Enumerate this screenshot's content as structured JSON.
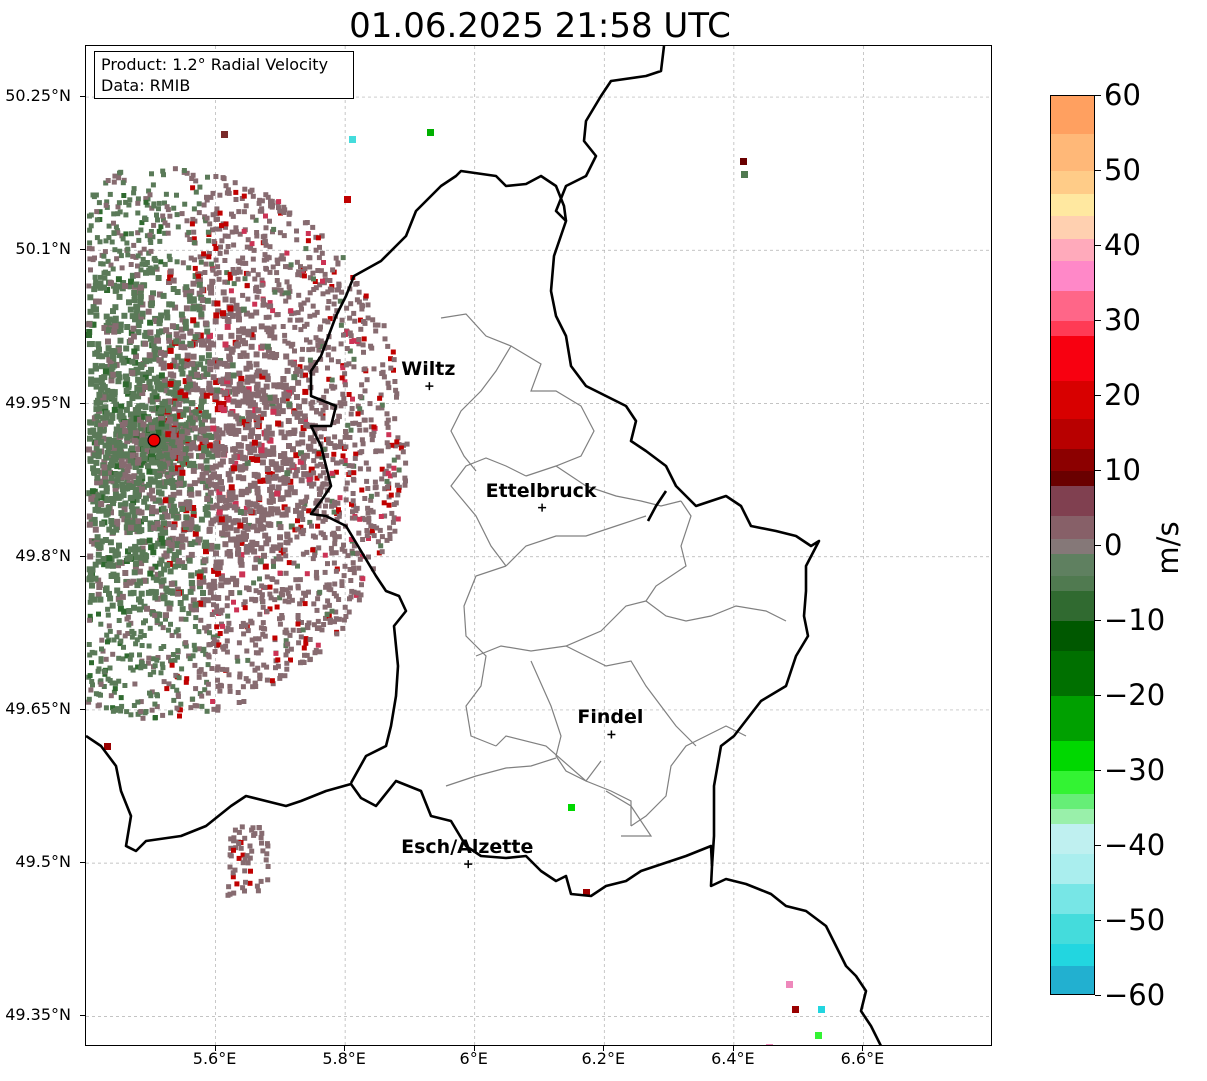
{
  "title": "01.06.2025 21:58 UTC",
  "info": {
    "product": "Product: 1.2° Radial Velocity",
    "data": "Data: RMIB"
  },
  "axes": {
    "lon_range": [
      5.4,
      6.8
    ],
    "lat_range": [
      49.32,
      50.3
    ],
    "x_ticks": [
      {
        "value": 5.6,
        "label": "5.6°E"
      },
      {
        "value": 5.8,
        "label": "5.8°E"
      },
      {
        "value": 6.0,
        "label": "6°E"
      },
      {
        "value": 6.2,
        "label": "6.2°E"
      },
      {
        "value": 6.4,
        "label": "6.4°E"
      },
      {
        "value": 6.6,
        "label": "6.6°E"
      }
    ],
    "y_ticks": [
      {
        "value": 50.25,
        "label": "50.25°N"
      },
      {
        "value": 50.1,
        "label": "50.1°N"
      },
      {
        "value": 49.95,
        "label": "49.95°N"
      },
      {
        "value": 49.8,
        "label": "49.8°N"
      },
      {
        "value": 49.65,
        "label": "49.65°N"
      },
      {
        "value": 49.5,
        "label": "49.5°N"
      },
      {
        "value": 49.35,
        "label": "49.35°N"
      }
    ],
    "grid": true
  },
  "radar_site": {
    "lon": 5.505,
    "lat": 49.914,
    "color": "#ee0000"
  },
  "cities": [
    {
      "name": "Wiltz",
      "lon": 5.93,
      "lat": 49.967
    },
    {
      "name": "Ettelbruck",
      "lon": 6.104,
      "lat": 49.848
    },
    {
      "name": "Findel",
      "lon": 6.211,
      "lat": 49.626
    },
    {
      "name": "Esch/Alzette",
      "lon": 5.99,
      "lat": 49.499
    }
  ],
  "colorbar": {
    "unit": "m/s",
    "min": -60,
    "max": 60,
    "ticks": [
      60,
      50,
      40,
      30,
      20,
      10,
      0,
      -10,
      -20,
      -30,
      -40,
      -50,
      -60
    ],
    "tick_labels": [
      "60",
      "50",
      "40",
      "30",
      "20",
      "10",
      "0",
      "−10",
      "−20",
      "−30",
      "−40",
      "−50",
      "−60"
    ],
    "stops": [
      {
        "v": 60,
        "c": "#ffa060"
      },
      {
        "v": 55,
        "c": "#ffb878"
      },
      {
        "v": 50,
        "c": "#ffcc88"
      },
      {
        "v": 47,
        "c": "#ffe8a0"
      },
      {
        "v": 44,
        "c": "#ffd0b0"
      },
      {
        "v": 41,
        "c": "#ffaabb"
      },
      {
        "v": 38,
        "c": "#ff88c8"
      },
      {
        "v": 34,
        "c": "#ff6688"
      },
      {
        "v": 30,
        "c": "#ff3b55"
      },
      {
        "v": 28,
        "c": "#f80010"
      },
      {
        "v": 22,
        "c": "#d80000"
      },
      {
        "v": 17,
        "c": "#b80000"
      },
      {
        "v": 13,
        "c": "#8c0000"
      },
      {
        "v": 10,
        "c": "#6a0000"
      },
      {
        "v": 8,
        "c": "#804050"
      },
      {
        "v": 4,
        "c": "#876068"
      },
      {
        "v": 1,
        "c": "#857878"
      },
      {
        "v": -1,
        "c": "#5f8060"
      },
      {
        "v": -4,
        "c": "#507a50"
      },
      {
        "v": -6,
        "c": "#306a30"
      },
      {
        "v": -10,
        "c": "#005800"
      },
      {
        "v": -14,
        "c": "#007000"
      },
      {
        "v": -20,
        "c": "#00a000"
      },
      {
        "v": -26,
        "c": "#00d800"
      },
      {
        "v": -30,
        "c": "#33f333"
      },
      {
        "v": -33,
        "c": "#66ee77"
      },
      {
        "v": -35,
        "c": "#99f0aa"
      },
      {
        "v": -37,
        "c": "#bff0f0"
      },
      {
        "v": -41,
        "c": "#aaeeee"
      },
      {
        "v": -45,
        "c": "#77e6e6"
      },
      {
        "v": -49,
        "c": "#44dcdc"
      },
      {
        "v": -53,
        "c": "#22d6e0"
      },
      {
        "v": -56,
        "c": "#22b0d0"
      },
      {
        "v": -60,
        "c": "#2080c0"
      }
    ]
  },
  "colors": {
    "border": "#000000",
    "canton_lines": "#808080",
    "grid": "#b0b0b0",
    "velocity_green": "#5a7a58",
    "velocity_brown": "#876b70",
    "velocity_red": "#c00000"
  }
}
